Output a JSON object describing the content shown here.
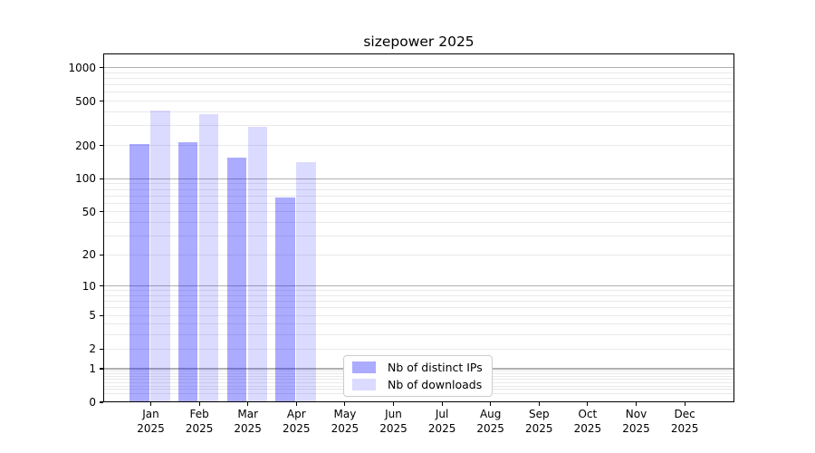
{
  "title": "sizepower 2025",
  "legend": {
    "items": [
      {
        "label": "Nb of distinct IPs",
        "color": "rgba(0,0,255,0.33)"
      },
      {
        "label": "Nb of downloads",
        "color": "rgba(0,0,255,0.14)"
      }
    ],
    "position": "lower center"
  },
  "chart_data": {
    "type": "bar",
    "title": "sizepower 2025",
    "categories": [
      "Jan 2025",
      "Feb 2025",
      "Mar 2025",
      "Apr 2025",
      "May 2025",
      "Jun 2025",
      "Jul 2025",
      "Aug 2025",
      "Sep 2025",
      "Oct 2025",
      "Nov 2025",
      "Dec 2025"
    ],
    "category_month_line": [
      "Jan",
      "Feb",
      "Mar",
      "Apr",
      "May",
      "Jun",
      "Jul",
      "Aug",
      "Sep",
      "Oct",
      "Nov",
      "Dec"
    ],
    "category_year_line": "2025",
    "series": [
      {
        "name": "Nb of distinct IPs",
        "color": "rgba(0,0,255,0.33)",
        "values": [
          205,
          215,
          155,
          67,
          0,
          0,
          0,
          0,
          0,
          0,
          0,
          0
        ]
      },
      {
        "name": "Nb of downloads",
        "color": "rgba(0,0,255,0.14)",
        "values": [
          415,
          385,
          295,
          140,
          0,
          0,
          0,
          0,
          0,
          0,
          0,
          0
        ]
      }
    ],
    "y_scale": "log10(1+y)",
    "y_tick_labels": [
      "1000",
      "500",
      "200",
      "100",
      "50",
      "20",
      "10",
      "5",
      "2",
      "1",
      "0"
    ],
    "y_tick_values": [
      1000,
      500,
      200,
      100,
      50,
      20,
      10,
      5,
      2,
      1,
      0
    ],
    "major_gridline_values": [
      1,
      10,
      100,
      1000
    ],
    "minor_gridline_values": [
      0.2,
      0.3,
      0.4,
      0.5,
      0.6,
      0.7,
      0.8,
      0.9,
      2,
      3,
      4,
      5,
      6,
      7,
      8,
      9,
      20,
      30,
      40,
      50,
      60,
      70,
      80,
      90,
      200,
      300,
      400,
      500,
      600,
      700,
      800,
      900
    ],
    "ylim": [
      0,
      1340
    ],
    "grid": "horizontal",
    "legend_position": "lower center",
    "colors": {
      "major_grid": "#b0b0b0",
      "minor_grid": "#e9e9e9",
      "axis": "#000000",
      "background": "#ffffff",
      "bar_distinct_ips_on_white": "#aaaaff",
      "bar_downloads_on_white": "#dcdcff"
    }
  }
}
